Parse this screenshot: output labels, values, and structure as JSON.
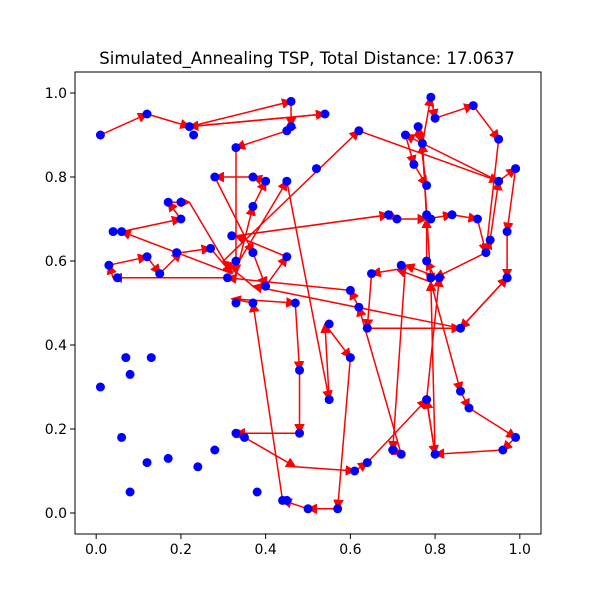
{
  "chart_data": {
    "type": "line",
    "title": "Simulated_Annealing TSP, Total Distance: 17.0637",
    "xlabel": "",
    "ylabel": "",
    "xlim": [
      -0.05,
      1.05
    ],
    "ylim": [
      -0.05,
      1.05
    ],
    "xticks": [
      0.0,
      0.2,
      0.4,
      0.6,
      0.8,
      1.0
    ],
    "yticks": [
      0.0,
      0.2,
      0.4,
      0.6,
      0.8,
      1.0
    ],
    "xtick_labels": [
      "0.0",
      "0.2",
      "0.4",
      "0.6",
      "0.8",
      "1.0"
    ],
    "ytick_labels": [
      "0.0",
      "0.2",
      "0.4",
      "0.6",
      "0.8",
      "1.0"
    ],
    "grid": false,
    "point_color": "#0000ff",
    "route_color": "#ff0000",
    "cities": [
      [
        0.01,
        0.9
      ],
      [
        0.12,
        0.95
      ],
      [
        0.22,
        0.92
      ],
      [
        0.54,
        0.95
      ],
      [
        0.46,
        0.98
      ],
      [
        0.46,
        0.92
      ],
      [
        0.45,
        0.91
      ],
      [
        0.33,
        0.87
      ],
      [
        0.37,
        0.8
      ],
      [
        0.4,
        0.79
      ],
      [
        0.45,
        0.79
      ],
      [
        0.52,
        0.82
      ],
      [
        0.62,
        0.91
      ],
      [
        0.73,
        0.9
      ],
      [
        0.75,
        0.83
      ],
      [
        0.76,
        0.92
      ],
      [
        0.77,
        0.88
      ],
      [
        0.79,
        0.99
      ],
      [
        0.8,
        0.94
      ],
      [
        0.89,
        0.97
      ],
      [
        0.95,
        0.89
      ],
      [
        0.95,
        0.79
      ],
      [
        0.99,
        0.82
      ],
      [
        0.97,
        0.67
      ],
      [
        0.93,
        0.65
      ],
      [
        0.92,
        0.62
      ],
      [
        0.9,
        0.7
      ],
      [
        0.84,
        0.71
      ],
      [
        0.78,
        0.71
      ],
      [
        0.78,
        0.78
      ],
      [
        0.79,
        0.7
      ],
      [
        0.78,
        0.6
      ],
      [
        0.79,
        0.56
      ],
      [
        0.72,
        0.59
      ],
      [
        0.65,
        0.57
      ],
      [
        0.62,
        0.49
      ],
      [
        0.6,
        0.53
      ],
      [
        0.64,
        0.44
      ],
      [
        0.86,
        0.44
      ],
      [
        0.97,
        0.56
      ],
      [
        0.97,
        0.56
      ],
      [
        0.97,
        0.56
      ],
      [
        0.86,
        0.29
      ],
      [
        0.88,
        0.25
      ],
      [
        0.99,
        0.18
      ],
      [
        0.96,
        0.15
      ],
      [
        0.8,
        0.14
      ],
      [
        0.72,
        0.14
      ],
      [
        0.7,
        0.15
      ],
      [
        0.71,
        0.7
      ],
      [
        0.69,
        0.71
      ],
      [
        0.32,
        0.66
      ],
      [
        0.37,
        0.62
      ],
      [
        0.4,
        0.54
      ],
      [
        0.45,
        0.61
      ],
      [
        0.47,
        0.5
      ],
      [
        0.55,
        0.27
      ],
      [
        0.48,
        0.34
      ],
      [
        0.48,
        0.19
      ],
      [
        0.33,
        0.19
      ],
      [
        0.35,
        0.18
      ],
      [
        0.45,
        0.03
      ],
      [
        0.38,
        0.05
      ],
      [
        0.28,
        0.15
      ],
      [
        0.24,
        0.11
      ],
      [
        0.17,
        0.13
      ],
      [
        0.12,
        0.12
      ],
      [
        0.31,
        0.56
      ],
      [
        0.27,
        0.63
      ],
      [
        0.19,
        0.62
      ],
      [
        0.15,
        0.57
      ],
      [
        0.05,
        0.56
      ],
      [
        0.03,
        0.59
      ],
      [
        0.12,
        0.61
      ],
      [
        0.07,
        0.37
      ],
      [
        0.08,
        0.33
      ],
      [
        0.01,
        0.3
      ],
      [
        0.06,
        0.18
      ],
      [
        0.08,
        0.05
      ],
      [
        0.13,
        0.37
      ],
      [
        0.33,
        0.6
      ],
      [
        0.37,
        0.5
      ],
      [
        0.33,
        0.5
      ],
      [
        0.44,
        0.03
      ],
      [
        0.5,
        0.01
      ],
      [
        0.57,
        0.01
      ],
      [
        0.6,
        0.37
      ],
      [
        0.55,
        0.45
      ],
      [
        0.37,
        0.73
      ],
      [
        0.28,
        0.8
      ],
      [
        0.2,
        0.74
      ],
      [
        0.17,
        0.74
      ],
      [
        0.2,
        0.7
      ],
      [
        0.06,
        0.67
      ],
      [
        0.04,
        0.67
      ],
      [
        0.23,
        0.9
      ],
      [
        0.61,
        0.1
      ],
      [
        0.64,
        0.12
      ],
      [
        0.78,
        0.27
      ],
      [
        0.81,
        0.56
      ]
    ],
    "route": [
      [
        0.01,
        0.9
      ],
      [
        0.12,
        0.95
      ],
      [
        0.22,
        0.92
      ],
      [
        0.54,
        0.95
      ],
      [
        0.22,
        0.92
      ],
      [
        0.46,
        0.98
      ],
      [
        0.46,
        0.92
      ],
      [
        0.45,
        0.91
      ],
      [
        0.33,
        0.87
      ],
      [
        0.33,
        0.57
      ],
      [
        0.37,
        0.73
      ],
      [
        0.4,
        0.79
      ],
      [
        0.37,
        0.8
      ],
      [
        0.28,
        0.8
      ],
      [
        0.37,
        0.62
      ],
      [
        0.4,
        0.54
      ],
      [
        0.45,
        0.61
      ],
      [
        0.33,
        0.66
      ],
      [
        0.69,
        0.71
      ],
      [
        0.71,
        0.7
      ],
      [
        0.78,
        0.7
      ],
      [
        0.84,
        0.71
      ],
      [
        0.9,
        0.7
      ],
      [
        0.92,
        0.62
      ],
      [
        0.93,
        0.65
      ],
      [
        0.95,
        0.79
      ],
      [
        0.99,
        0.82
      ],
      [
        0.97,
        0.67
      ],
      [
        0.97,
        0.56
      ],
      [
        0.86,
        0.44
      ],
      [
        0.37,
        0.54
      ],
      [
        0.3,
        0.6
      ],
      [
        0.62,
        0.91
      ],
      [
        0.95,
        0.79
      ],
      [
        0.73,
        0.9
      ],
      [
        0.75,
        0.83
      ],
      [
        0.78,
        0.78
      ],
      [
        0.76,
        0.92
      ],
      [
        0.77,
        0.88
      ],
      [
        0.79,
        0.99
      ],
      [
        0.8,
        0.94
      ],
      [
        0.89,
        0.97
      ],
      [
        0.95,
        0.89
      ],
      [
        0.92,
        0.62
      ],
      [
        0.8,
        0.56
      ],
      [
        0.78,
        0.6
      ],
      [
        0.78,
        0.7
      ],
      [
        0.77,
        0.88
      ],
      [
        0.79,
        0.55
      ],
      [
        0.86,
        0.29
      ],
      [
        0.88,
        0.25
      ],
      [
        0.99,
        0.18
      ],
      [
        0.96,
        0.15
      ],
      [
        0.8,
        0.14
      ],
      [
        0.78,
        0.27
      ],
      [
        0.81,
        0.56
      ],
      [
        0.73,
        0.59
      ],
      [
        0.7,
        0.15
      ],
      [
        0.72,
        0.14
      ],
      [
        0.62,
        0.49
      ],
      [
        0.6,
        0.53
      ],
      [
        0.31,
        0.56
      ],
      [
        0.04,
        0.56
      ],
      [
        0.03,
        0.59
      ],
      [
        0.12,
        0.61
      ],
      [
        0.15,
        0.57
      ],
      [
        0.2,
        0.62
      ],
      [
        0.27,
        0.63
      ],
      [
        0.32,
        0.57
      ],
      [
        0.06,
        0.67
      ],
      [
        0.2,
        0.7
      ],
      [
        0.17,
        0.74
      ],
      [
        0.22,
        0.74
      ],
      [
        0.32,
        0.57
      ],
      [
        0.45,
        0.79
      ],
      [
        0.55,
        0.27
      ],
      [
        0.54,
        0.45
      ],
      [
        0.6,
        0.37
      ],
      [
        0.57,
        0.01
      ],
      [
        0.5,
        0.01
      ],
      [
        0.44,
        0.03
      ],
      [
        0.37,
        0.5
      ],
      [
        0.32,
        0.51
      ],
      [
        0.47,
        0.5
      ],
      [
        0.48,
        0.34
      ],
      [
        0.48,
        0.19
      ],
      [
        0.33,
        0.19
      ],
      [
        0.35,
        0.18
      ],
      [
        0.47,
        0.11
      ],
      [
        0.61,
        0.1
      ],
      [
        0.64,
        0.12
      ],
      [
        0.78,
        0.27
      ],
      [
        0.8,
        0.14
      ],
      [
        0.79,
        0.55
      ],
      [
        0.71,
        0.58
      ],
      [
        0.65,
        0.57
      ],
      [
        0.64,
        0.44
      ],
      [
        0.86,
        0.44
      ],
      [
        0.97,
        0.56
      ],
      [
        0.97,
        0.56
      ]
    ]
  }
}
